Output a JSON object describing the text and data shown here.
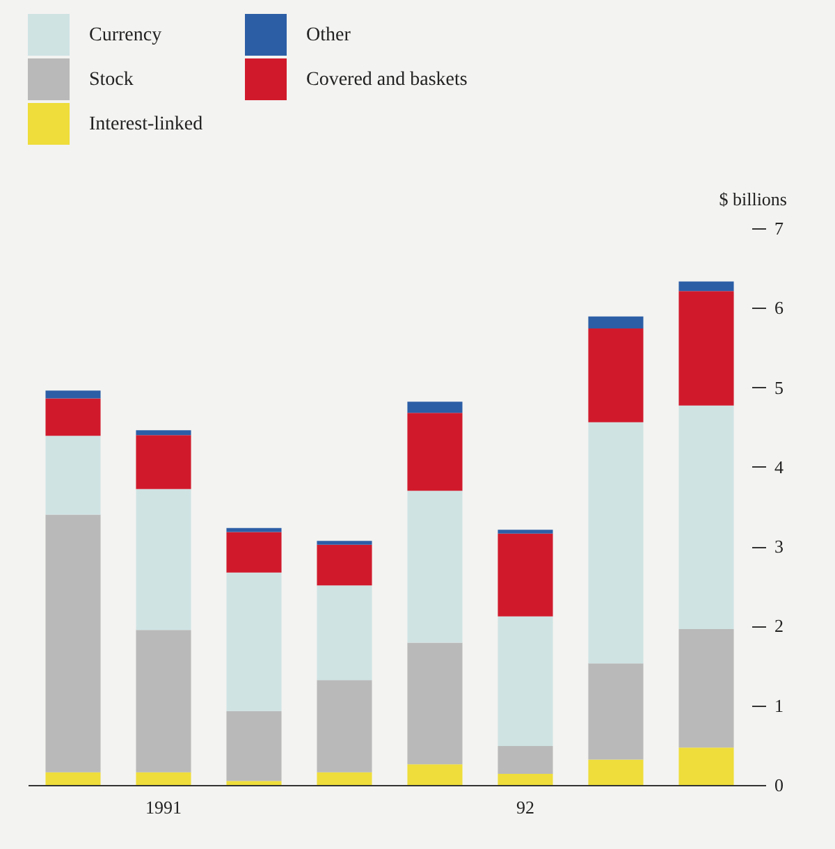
{
  "chart_data": {
    "type": "bar",
    "stacked": true,
    "ylabel": "$ billions",
    "categories": [
      null,
      "1991",
      null,
      null,
      null,
      "92",
      null,
      null
    ],
    "series": [
      {
        "name": "Interest-linked",
        "color": "#eedd3a",
        "values": [
          0.16,
          0.16,
          0.05,
          0.16,
          0.26,
          0.14,
          0.32,
          0.47
        ]
      },
      {
        "name": "Stock",
        "color": "#b9b9b9",
        "values": [
          3.24,
          1.79,
          0.88,
          1.16,
          1.53,
          0.35,
          1.21,
          1.49
        ]
      },
      {
        "name": "Currency",
        "color": "#cfe3e3",
        "values": [
          0.99,
          1.77,
          1.74,
          1.19,
          1.91,
          1.63,
          3.03,
          2.81
        ]
      },
      {
        "name": "Covered and baskets",
        "color": "#d01a2c",
        "values": [
          0.47,
          0.68,
          0.51,
          0.51,
          0.98,
          1.04,
          1.18,
          1.44
        ]
      },
      {
        "name": "Other",
        "color": "#2c5ea6",
        "values": [
          0.1,
          0.06,
          0.05,
          0.05,
          0.14,
          0.05,
          0.15,
          0.12
        ]
      }
    ],
    "ylim": [
      0,
      7
    ],
    "yticks": [
      0,
      1,
      2,
      3,
      4,
      5,
      6,
      7
    ],
    "grid": false,
    "legend": "top left"
  }
}
